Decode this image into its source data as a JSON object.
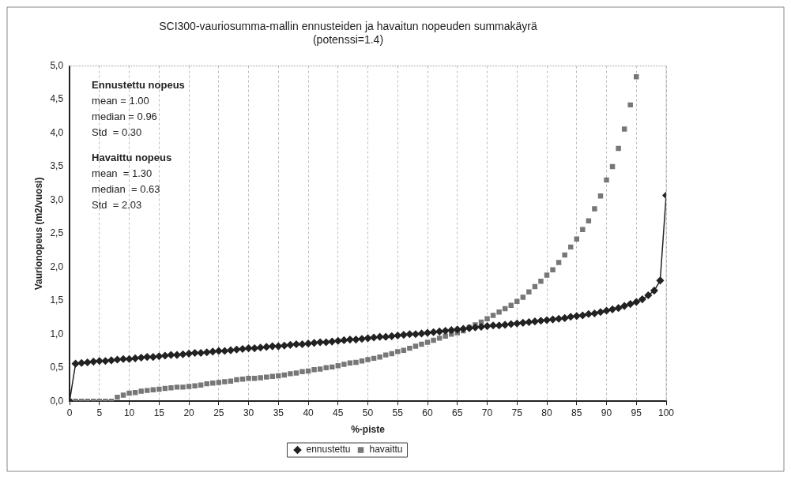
{
  "chart_data": {
    "type": "line",
    "title": "SCI300-vauriosumma-mallin ennusteiden ja havaitun nopeuden summakäyrä",
    "subtitle": "(potenssi=1.4)",
    "xlabel": "%-piste",
    "ylabel": "Vaurionopeus (m2/vuosi)",
    "xlim": [
      0,
      100
    ],
    "xticks": [
      0,
      5,
      10,
      15,
      20,
      25,
      30,
      35,
      40,
      45,
      50,
      55,
      60,
      65,
      70,
      75,
      80,
      85,
      90,
      95,
      100
    ],
    "ylim": [
      0,
      5
    ],
    "yticks": [
      {
        "value": 0,
        "label": "0,0"
      },
      {
        "value": 0.5,
        "label": "0,5"
      },
      {
        "value": 1,
        "label": "1,0"
      },
      {
        "value": 1.5,
        "label": "1,5"
      },
      {
        "value": 2,
        "label": "2,0"
      },
      {
        "value": 2.5,
        "label": "2,5"
      },
      {
        "value": 3,
        "label": "3,0"
      },
      {
        "value": 3.5,
        "label": "3,5"
      },
      {
        "value": 4,
        "label": "4,0"
      },
      {
        "value": 4.5,
        "label": "4,5"
      },
      {
        "value": 5,
        "label": "5,0"
      }
    ],
    "grid": "x",
    "legend": "bottom",
    "annotations": [
      "Ennustettu nopeus",
      "mean = 1.00",
      "median = 0.96",
      "Std  = 0.30",
      "Havaittu nopeus",
      "mean  = 1.30",
      "median  = 0.63",
      "Std  = 2.03"
    ],
    "series": [
      {
        "name": "ennustettu",
        "type": "line",
        "marker": "diamond",
        "line_style": "solid",
        "color": "#222222",
        "x": [
          0,
          1,
          2,
          3,
          4,
          5,
          6,
          7,
          8,
          9,
          10,
          11,
          12,
          13,
          14,
          15,
          16,
          17,
          18,
          19,
          20,
          21,
          22,
          23,
          24,
          25,
          26,
          27,
          28,
          29,
          30,
          31,
          32,
          33,
          34,
          35,
          36,
          37,
          38,
          39,
          40,
          41,
          42,
          43,
          44,
          45,
          46,
          47,
          48,
          49,
          50,
          51,
          52,
          53,
          54,
          55,
          56,
          57,
          58,
          59,
          60,
          61,
          62,
          63,
          64,
          65,
          66,
          67,
          68,
          69,
          70,
          71,
          72,
          73,
          74,
          75,
          76,
          77,
          78,
          79,
          80,
          81,
          82,
          83,
          84,
          85,
          86,
          87,
          88,
          89,
          90,
          91,
          92,
          93,
          94,
          95,
          96,
          97,
          98,
          99,
          100
        ],
        "values": [
          0,
          0.56,
          0.57,
          0.58,
          0.59,
          0.6,
          0.6,
          0.61,
          0.62,
          0.63,
          0.63,
          0.64,
          0.65,
          0.66,
          0.66,
          0.67,
          0.68,
          0.69,
          0.69,
          0.7,
          0.71,
          0.72,
          0.72,
          0.73,
          0.74,
          0.75,
          0.75,
          0.76,
          0.77,
          0.78,
          0.79,
          0.79,
          0.8,
          0.81,
          0.82,
          0.82,
          0.83,
          0.84,
          0.85,
          0.85,
          0.86,
          0.87,
          0.88,
          0.88,
          0.89,
          0.9,
          0.91,
          0.92,
          0.92,
          0.93,
          0.94,
          0.95,
          0.96,
          0.96,
          0.97,
          0.98,
          0.99,
          1.0,
          1.0,
          1.01,
          1.02,
          1.03,
          1.04,
          1.05,
          1.06,
          1.07,
          1.08,
          1.09,
          1.1,
          1.11,
          1.12,
          1.13,
          1.13,
          1.14,
          1.15,
          1.16,
          1.17,
          1.18,
          1.19,
          1.2,
          1.21,
          1.22,
          1.23,
          1.24,
          1.26,
          1.27,
          1.28,
          1.3,
          1.31,
          1.33,
          1.35,
          1.37,
          1.39,
          1.42,
          1.45,
          1.48,
          1.52,
          1.58,
          1.65,
          1.8,
          3.07
        ]
      },
      {
        "name": "havaittu",
        "type": "scatter",
        "marker": "square",
        "color": "#777777",
        "x": [
          0,
          1,
          2,
          3,
          4,
          5,
          6,
          7,
          8,
          9,
          10,
          11,
          12,
          13,
          14,
          15,
          16,
          17,
          18,
          19,
          20,
          21,
          22,
          23,
          24,
          25,
          26,
          27,
          28,
          29,
          30,
          31,
          32,
          33,
          34,
          35,
          36,
          37,
          38,
          39,
          40,
          41,
          42,
          43,
          44,
          45,
          46,
          47,
          48,
          49,
          50,
          51,
          52,
          53,
          54,
          55,
          56,
          57,
          58,
          59,
          60,
          61,
          62,
          63,
          64,
          65,
          66,
          67,
          68,
          69,
          70,
          71,
          72,
          73,
          74,
          75,
          76,
          77,
          78,
          79,
          80,
          81,
          82,
          83,
          84,
          85,
          86,
          87,
          88,
          89,
          90,
          91,
          92,
          93,
          94,
          95
        ],
        "values": [
          0,
          0,
          0,
          0,
          0,
          0,
          0,
          0,
          0.06,
          0.09,
          0.12,
          0.13,
          0.15,
          0.16,
          0.17,
          0.18,
          0.19,
          0.2,
          0.21,
          0.21,
          0.22,
          0.23,
          0.24,
          0.26,
          0.27,
          0.28,
          0.29,
          0.3,
          0.32,
          0.33,
          0.34,
          0.34,
          0.35,
          0.36,
          0.37,
          0.38,
          0.39,
          0.41,
          0.42,
          0.44,
          0.45,
          0.47,
          0.48,
          0.5,
          0.51,
          0.53,
          0.55,
          0.57,
          0.58,
          0.6,
          0.62,
          0.64,
          0.66,
          0.69,
          0.71,
          0.74,
          0.76,
          0.79,
          0.82,
          0.85,
          0.88,
          0.91,
          0.94,
          0.97,
          1.0,
          1.02,
          1.05,
          1.1,
          1.14,
          1.18,
          1.23,
          1.28,
          1.33,
          1.38,
          1.43,
          1.49,
          1.55,
          1.63,
          1.71,
          1.79,
          1.88,
          1.96,
          2.07,
          2.18,
          2.3,
          2.42,
          2.56,
          2.69,
          2.87,
          3.06,
          3.3,
          3.5,
          3.77,
          4.06,
          4.42,
          4.84
        ]
      }
    ]
  }
}
